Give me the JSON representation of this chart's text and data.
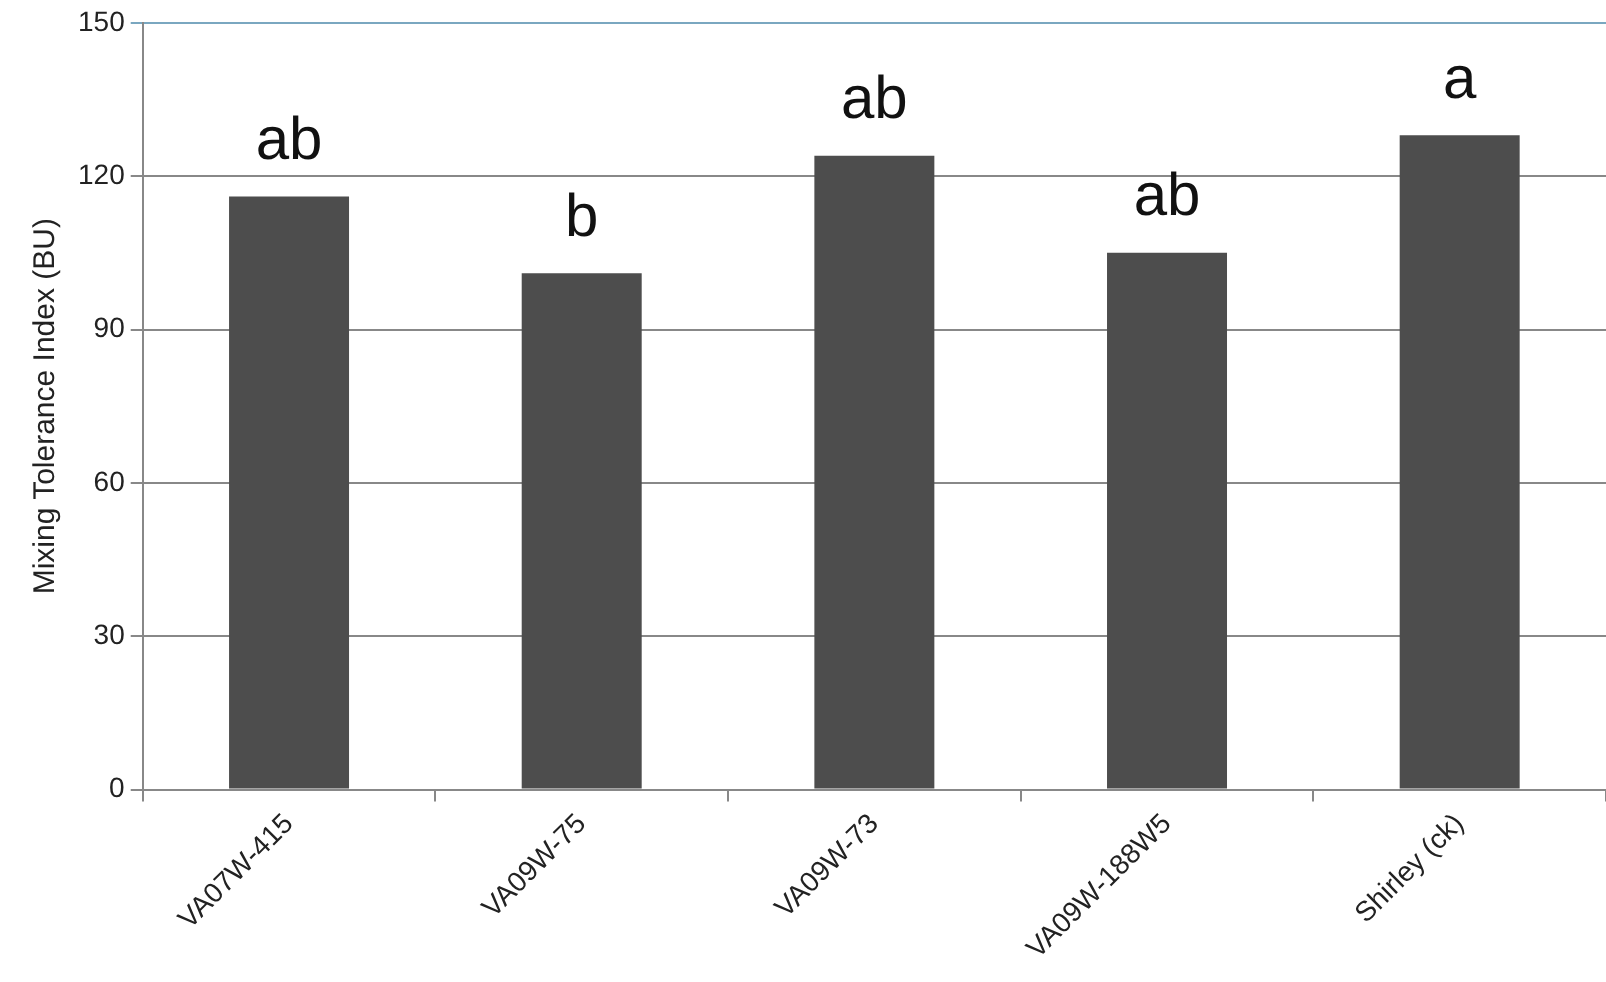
{
  "chart_data": {
    "type": "bar",
    "ylabel": "Mixing Tolerance Index (BU)",
    "categories": [
      "VA07W-415",
      "VA09W-75",
      "VA09W-73",
      "VA09W-188W5",
      "Shirley (ck)"
    ],
    "values": [
      116,
      101,
      124,
      105,
      128
    ],
    "color": "#4d4d4d",
    "ylim": [
      0,
      150
    ],
    "yticks": [
      0,
      30,
      60,
      90,
      120,
      150
    ],
    "grid": "y",
    "legend": false,
    "annotations": [
      {
        "text": "ab",
        "x": "VA07W-415",
        "y": 116
      },
      {
        "text": "b",
        "x": "VA09W-75",
        "y": 101
      },
      {
        "text": "ab",
        "x": "VA09W-73",
        "y": 124
      },
      {
        "text": "ab",
        "x": "VA09W-188W5",
        "y": 105
      },
      {
        "text": "a",
        "x": "Shirley (ck)",
        "y": 128
      }
    ]
  }
}
